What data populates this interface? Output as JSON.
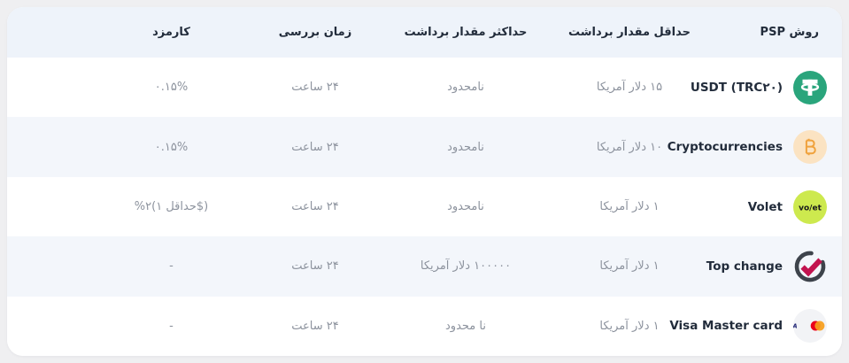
{
  "page": {
    "background": "#efeff1",
    "card_background": "#ffffff"
  },
  "table": {
    "header": {
      "psp": "روش PSP",
      "min": "حداقل مقدار برداشت",
      "max": "حداکثر مقدار برداشت",
      "time": "زمان بررسی",
      "fee": "کارمزد"
    },
    "rows": [
      {
        "psp": "USDT (TRC۲۰)",
        "icon": "tether-icon",
        "min": "۱۵ دلار آمریکا",
        "max": "نامحدود",
        "time": "۲۴ ساعت",
        "fee": "۰.۱۵%",
        "fee_dir": "rtl"
      },
      {
        "psp": "Cryptocurrencies",
        "icon": "bitcoin-icon",
        "min": "۱۰ دلار آمریکا",
        "max": "نامحدود",
        "time": "۲۴ ساعت",
        "fee": "۰.۱۵%",
        "fee_dir": "rtl"
      },
      {
        "psp": "Volet",
        "icon": "volet-icon",
        "min": "۱ دلار آمریکا",
        "max": "نامحدود",
        "time": "۲۴ ساعت",
        "fee": "%۲(حداقل ۱$)",
        "fee_dir": "ltr"
      },
      {
        "psp": "Top change",
        "icon": "topchange-icon",
        "min": "۱ دلار آمریکا",
        "max": "۱۰۰۰۰۰ دلار آمریکا",
        "time": "۲۴ ساعت",
        "fee": "-",
        "fee_dir": "rtl"
      },
      {
        "psp": "Visa Master card",
        "icon": "visa-mastercard-icon",
        "min": "۱ دلار آمریکا",
        "max": "نا محدود",
        "time": "۲۴ ساعت",
        "fee": "-",
        "fee_dir": "rtl"
      }
    ],
    "colors": {
      "header_bg": "#eef3fa",
      "alt_row_bg": "#f3f6fb",
      "header_text": "#222c3b",
      "label_text": "#222c3b",
      "value_text": "#8d939e",
      "tether_green": "#2aa57c",
      "bitcoin_bg": "#fbe3c2",
      "bitcoin_orange": "#f0a23c",
      "volet_lime": "#cde94e",
      "topchange_charcoal": "#3d434b",
      "topchange_crimson": "#c2134f",
      "visa_blue": "#1a1f71",
      "mastercard_red": "#eb001b",
      "mastercard_orange": "#f79e1b"
    }
  }
}
